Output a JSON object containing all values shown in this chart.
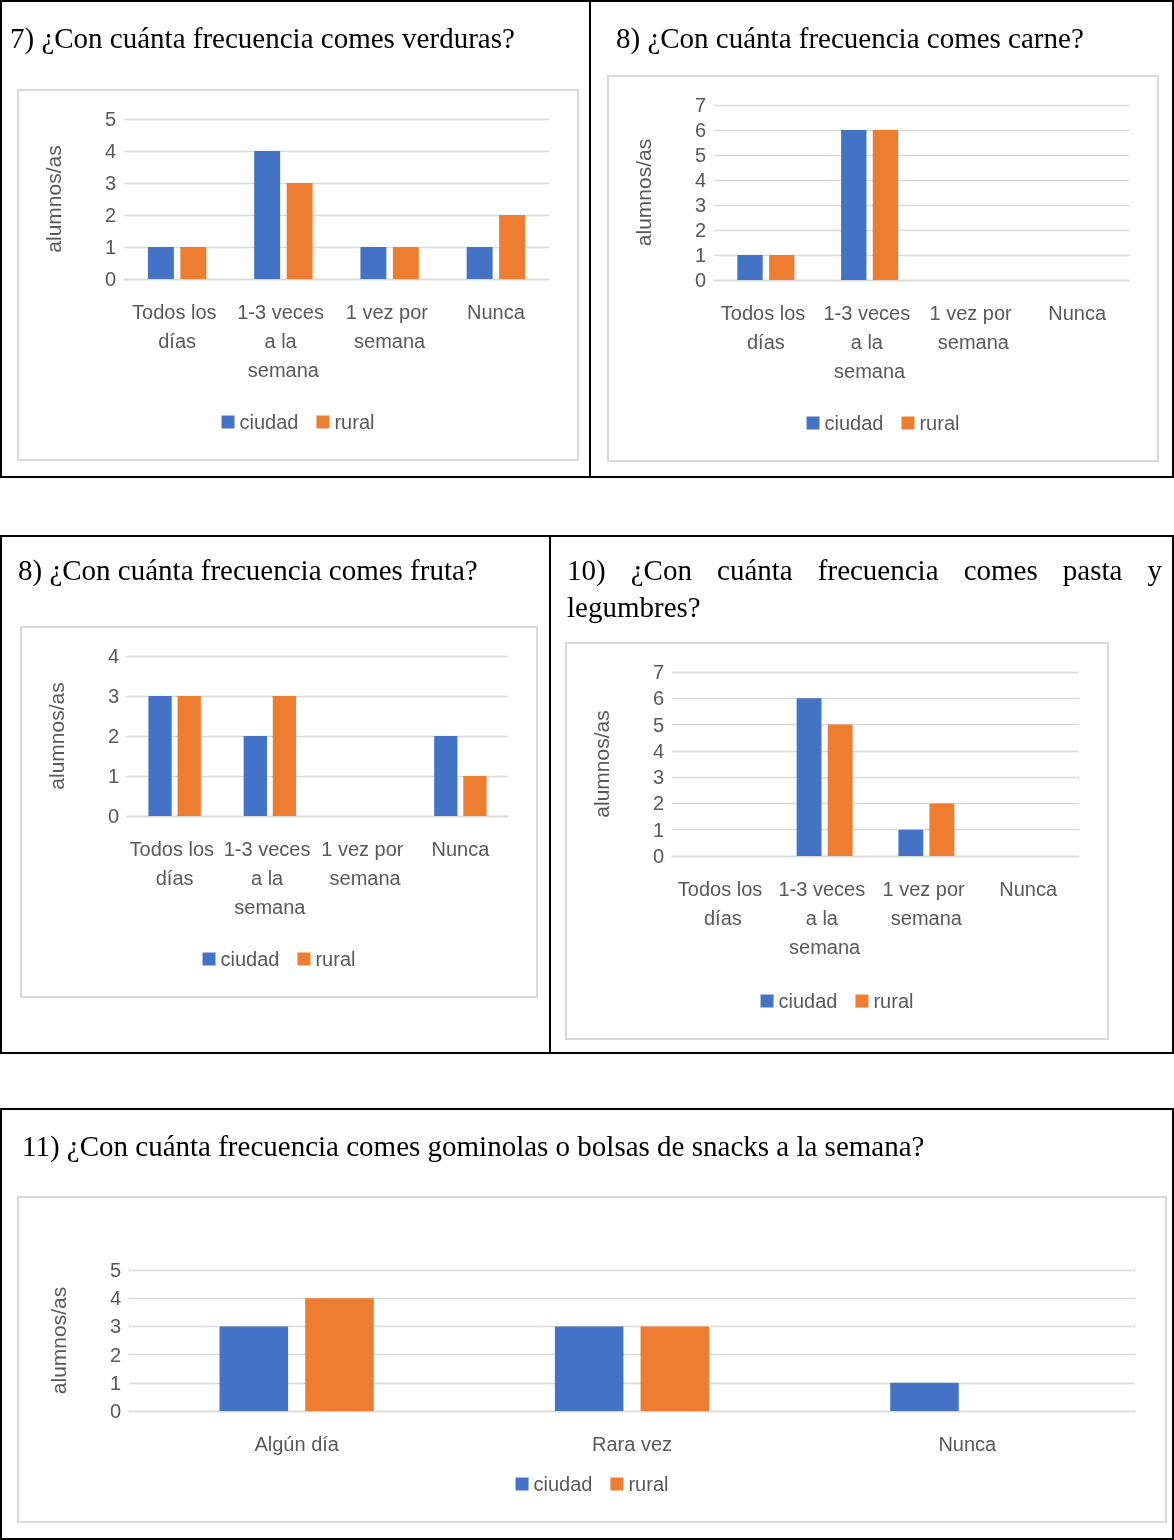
{
  "chart_data": [
    {
      "type": "bar",
      "title": "7)  ¿Con cuánta frecuencia comes verduras?",
      "ylabel": "alumnos/as",
      "categories": [
        "Todos los días",
        "1-3 veces a la semana",
        "1 vez por semana",
        "Nunca"
      ],
      "series": [
        {
          "name": "ciudad",
          "color": "#4472c4",
          "values": [
            1,
            4,
            1,
            1
          ]
        },
        {
          "name": "rural",
          "color": "#ed7d31",
          "values": [
            1,
            3,
            1,
            2
          ]
        }
      ],
      "ylim": [
        0,
        5
      ],
      "yticks": [
        0,
        1,
        2,
        3,
        4,
        5
      ],
      "grid": "y",
      "legend": "bottom"
    },
    {
      "type": "bar",
      "title": "8)  ¿Con cuánta frecuencia comes carne?",
      "ylabel": "alumnos/as",
      "categories": [
        "Todos los días",
        "1-3 veces a la semana",
        "1 vez por semana",
        "Nunca"
      ],
      "series": [
        {
          "name": "ciudad",
          "color": "#4472c4",
          "values": [
            1,
            6,
            0,
            0
          ]
        },
        {
          "name": "rural",
          "color": "#ed7d31",
          "values": [
            1,
            6,
            0,
            0
          ]
        }
      ],
      "ylim": [
        0,
        7
      ],
      "yticks": [
        0,
        1,
        2,
        3,
        4,
        5,
        6,
        7
      ],
      "grid": "y",
      "legend": "bottom"
    },
    {
      "type": "bar",
      "title": "8) ¿Con cuánta frecuencia comes fruta?",
      "ylabel": "alumnos/as",
      "categories": [
        "Todos los días",
        "1-3 veces a la semana",
        "1 vez por semana",
        "Nunca"
      ],
      "series": [
        {
          "name": "ciudad",
          "color": "#4472c4",
          "values": [
            3,
            2,
            0,
            2
          ]
        },
        {
          "name": "rural",
          "color": "#ed7d31",
          "values": [
            3,
            3,
            0,
            1
          ]
        }
      ],
      "ylim": [
        0,
        4
      ],
      "yticks": [
        0,
        1,
        2,
        3,
        4
      ],
      "grid": "y",
      "legend": "bottom"
    },
    {
      "type": "bar",
      "title": "10) ¿Con cuánta frecuencia comes pasta y legumbres?",
      "ylabel": "alumnos/as",
      "categories": [
        "Todos los días",
        "1-3 veces a la semana",
        "1 vez por semana",
        "Nunca"
      ],
      "series": [
        {
          "name": "ciudad",
          "color": "#4472c4",
          "values": [
            0,
            6,
            1,
            0
          ]
        },
        {
          "name": "rural",
          "color": "#ed7d31",
          "values": [
            0,
            5,
            2,
            0
          ]
        }
      ],
      "ylim": [
        0,
        7
      ],
      "yticks": [
        0,
        1,
        2,
        3,
        4,
        5,
        6,
        7
      ],
      "grid": "y",
      "legend": "bottom"
    },
    {
      "type": "bar",
      "title": "11) ¿Con cuánta frecuencia comes gominolas o bolsas de snacks a la semana?",
      "ylabel": "alumnos/as",
      "categories": [
        "Algún día",
        "Rara vez",
        "Nunca"
      ],
      "series": [
        {
          "name": "ciudad",
          "color": "#4472c4",
          "values": [
            3,
            3,
            1
          ]
        },
        {
          "name": "rural",
          "color": "#ed7d31",
          "values": [
            4,
            3,
            0
          ]
        }
      ],
      "ylim": [
        0,
        5
      ],
      "yticks": [
        0,
        1,
        2,
        3,
        4,
        5
      ],
      "grid": "y",
      "legend": "bottom"
    }
  ]
}
